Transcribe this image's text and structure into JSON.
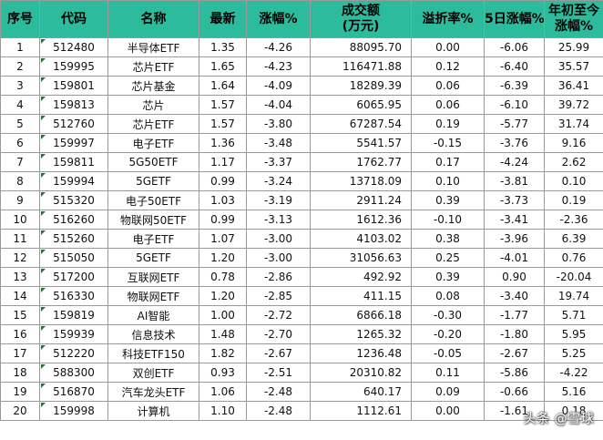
{
  "table": {
    "headers": {
      "seq": "序号",
      "code": "代码",
      "name": "名称",
      "latest": "最新",
      "change": "涨幅%",
      "volume_line1": "成交额",
      "volume_line2": "(万元)",
      "premium": "溢折率%",
      "change5d": "5日涨幅%",
      "ytd_line1": "年初至今",
      "ytd_line2": "涨幅%"
    },
    "rows": [
      {
        "seq": "1",
        "code": "512480",
        "name": "半导体ETF",
        "latest": "1.35",
        "change": "-4.26",
        "volume": "88095.70",
        "premium": "0.00",
        "change5d": "-6.06",
        "ytd": "25.99"
      },
      {
        "seq": "2",
        "code": "159995",
        "name": "芯片ETF",
        "latest": "1.65",
        "change": "-4.23",
        "volume": "116471.88",
        "premium": "0.12",
        "change5d": "-6.40",
        "ytd": "35.57"
      },
      {
        "seq": "3",
        "code": "159801",
        "name": "芯片基金",
        "latest": "1.64",
        "change": "-4.09",
        "volume": "18289.39",
        "premium": "0.06",
        "change5d": "-6.39",
        "ytd": "36.41"
      },
      {
        "seq": "4",
        "code": "159813",
        "name": "芯片",
        "latest": "1.57",
        "change": "-4.04",
        "volume": "6065.95",
        "premium": "0.06",
        "change5d": "-6.10",
        "ytd": "39.72"
      },
      {
        "seq": "5",
        "code": "512760",
        "name": "芯片ETF",
        "latest": "1.57",
        "change": "-3.80",
        "volume": "67287.54",
        "premium": "0.19",
        "change5d": "-5.77",
        "ytd": "31.74"
      },
      {
        "seq": "6",
        "code": "159997",
        "name": "电子ETF",
        "latest": "1.36",
        "change": "-3.48",
        "volume": "5541.57",
        "premium": "-0.15",
        "change5d": "-3.76",
        "ytd": "9.16"
      },
      {
        "seq": "7",
        "code": "159811",
        "name": "5G50ETF",
        "latest": "1.17",
        "change": "-3.37",
        "volume": "1762.77",
        "premium": "0.17",
        "change5d": "-4.24",
        "ytd": "2.62"
      },
      {
        "seq": "8",
        "code": "159994",
        "name": "5GETF",
        "latest": "0.99",
        "change": "-3.24",
        "volume": "13718.09",
        "premium": "0.10",
        "change5d": "-3.81",
        "ytd": "0.10"
      },
      {
        "seq": "9",
        "code": "515320",
        "name": "电子50ETF",
        "latest": "1.03",
        "change": "-3.19",
        "volume": "2911.24",
        "premium": "0.39",
        "change5d": "-3.73",
        "ytd": "0.19"
      },
      {
        "seq": "10",
        "code": "516260",
        "name": "物联网50ETF",
        "latest": "0.99",
        "change": "-3.13",
        "volume": "1612.36",
        "premium": "-0.10",
        "change5d": "-3.41",
        "ytd": "-2.36"
      },
      {
        "seq": "11",
        "code": "515260",
        "name": "电子ETF",
        "latest": "1.07",
        "change": "-3.00",
        "volume": "4103.02",
        "premium": "0.38",
        "change5d": "-3.96",
        "ytd": "6.39"
      },
      {
        "seq": "12",
        "code": "515050",
        "name": "5GETF",
        "latest": "1.20",
        "change": "-3.00",
        "volume": "31056.63",
        "premium": "0.25",
        "change5d": "-4.01",
        "ytd": "0.76"
      },
      {
        "seq": "13",
        "code": "517200",
        "name": "互联网ETF",
        "latest": "0.78",
        "change": "-2.86",
        "volume": "492.92",
        "premium": "0.39",
        "change5d": "0.90",
        "ytd": "-20.04"
      },
      {
        "seq": "14",
        "code": "516330",
        "name": "物联网ETF",
        "latest": "1.20",
        "change": "-2.85",
        "volume": "411.15",
        "premium": "0.08",
        "change5d": "-3.40",
        "ytd": "19.74"
      },
      {
        "seq": "15",
        "code": "159819",
        "name": "AI智能",
        "latest": "1.00",
        "change": "-2.72",
        "volume": "6866.18",
        "premium": "-0.30",
        "change5d": "-1.77",
        "ytd": "5.71"
      },
      {
        "seq": "16",
        "code": "159939",
        "name": "信息技术",
        "latest": "1.48",
        "change": "-2.70",
        "volume": "1265.32",
        "premium": "-0.20",
        "change5d": "-1.80",
        "ytd": "5.95"
      },
      {
        "seq": "17",
        "code": "512220",
        "name": "科技ETF150",
        "latest": "1.82",
        "change": "-2.67",
        "volume": "1236.48",
        "premium": "-0.05",
        "change5d": "-2.67",
        "ytd": "5.25"
      },
      {
        "seq": "18",
        "code": "588300",
        "name": "双创ETF",
        "latest": "0.93",
        "change": "-2.51",
        "volume": "20310.82",
        "premium": "0.11",
        "change5d": "-5.86",
        "ytd": "-4.22"
      },
      {
        "seq": "19",
        "code": "516870",
        "name": "汽车龙头ETF",
        "latest": "1.06",
        "change": "-2.48",
        "volume": "640.17",
        "premium": "0.09",
        "change5d": "-0.66",
        "ytd": "5.16"
      },
      {
        "seq": "20",
        "code": "159998",
        "name": "计算机",
        "latest": "1.10",
        "change": "-2.48",
        "volume": "1112.61",
        "premium": "0.00",
        "change5d": "-1.61",
        "ytd": "0.18"
      }
    ]
  },
  "watermark": "头条 @雪球",
  "colors": {
    "header_bg": "#2dbb9d",
    "grid": "#9a9a9a",
    "cell_marker": "#1f7a2e"
  }
}
